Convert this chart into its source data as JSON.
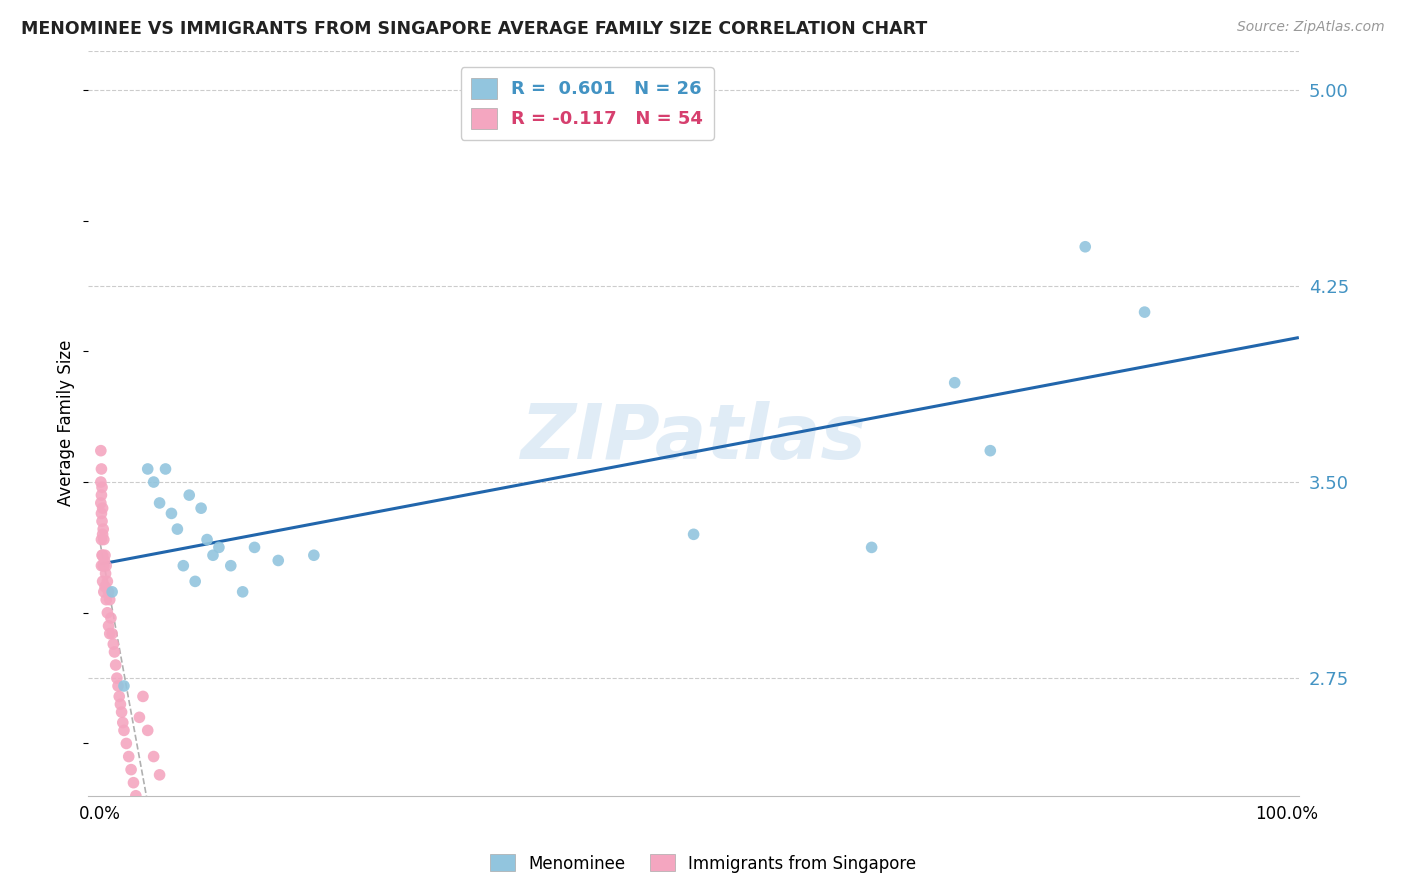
{
  "title": "MENOMINEE VS IMMIGRANTS FROM SINGAPORE AVERAGE FAMILY SIZE CORRELATION CHART",
  "source": "Source: ZipAtlas.com",
  "ylabel": "Average Family Size",
  "watermark": "ZIPatlas",
  "right_yticks": [
    2.75,
    3.5,
    4.25,
    5.0
  ],
  "ylim": [
    2.3,
    5.15
  ],
  "xlim": [
    -0.01,
    1.01
  ],
  "color_blue": "#92c5de",
  "color_pink": "#f4a6c0",
  "color_blue_text": "#4393c3",
  "color_pink_text": "#d6604d",
  "color_line_blue": "#2166ac",
  "color_line_pink": "#cccccc",
  "menominee_x": [
    0.01,
    0.02,
    0.04,
    0.045,
    0.05,
    0.055,
    0.06,
    0.065,
    0.07,
    0.075,
    0.08,
    0.085,
    0.09,
    0.095,
    0.1,
    0.11,
    0.12,
    0.13,
    0.15,
    0.18,
    0.5,
    0.65,
    0.72,
    0.75,
    0.83,
    0.88
  ],
  "menominee_y": [
    3.08,
    2.72,
    3.55,
    3.5,
    3.42,
    3.55,
    3.38,
    3.32,
    3.18,
    3.45,
    3.12,
    3.4,
    3.28,
    3.22,
    3.25,
    3.18,
    3.08,
    3.25,
    3.2,
    3.22,
    3.3,
    3.25,
    3.88,
    3.62,
    4.4,
    4.15
  ],
  "singapore_x": [
    0.0005,
    0.0005,
    0.0005,
    0.001,
    0.001,
    0.001,
    0.001,
    0.001,
    0.0015,
    0.0015,
    0.0015,
    0.002,
    0.002,
    0.002,
    0.002,
    0.0025,
    0.0025,
    0.003,
    0.003,
    0.003,
    0.0035,
    0.004,
    0.004,
    0.0045,
    0.005,
    0.005,
    0.006,
    0.006,
    0.007,
    0.007,
    0.008,
    0.008,
    0.009,
    0.01,
    0.011,
    0.012,
    0.013,
    0.014,
    0.015,
    0.016,
    0.017,
    0.018,
    0.019,
    0.02,
    0.022,
    0.024,
    0.026,
    0.028,
    0.03,
    0.033,
    0.036,
    0.04,
    0.045,
    0.05
  ],
  "singapore_y": [
    3.62,
    3.5,
    3.42,
    3.55,
    3.45,
    3.38,
    3.28,
    3.18,
    3.48,
    3.35,
    3.22,
    3.4,
    3.3,
    3.22,
    3.12,
    3.32,
    3.18,
    3.28,
    3.18,
    3.08,
    3.2,
    3.22,
    3.1,
    3.15,
    3.18,
    3.05,
    3.12,
    3.0,
    3.08,
    2.95,
    3.05,
    2.92,
    2.98,
    2.92,
    2.88,
    2.85,
    2.8,
    2.75,
    2.72,
    2.68,
    2.65,
    2.62,
    2.58,
    2.55,
    2.5,
    2.45,
    2.4,
    2.35,
    2.3,
    2.6,
    2.68,
    2.55,
    2.45,
    2.38
  ]
}
